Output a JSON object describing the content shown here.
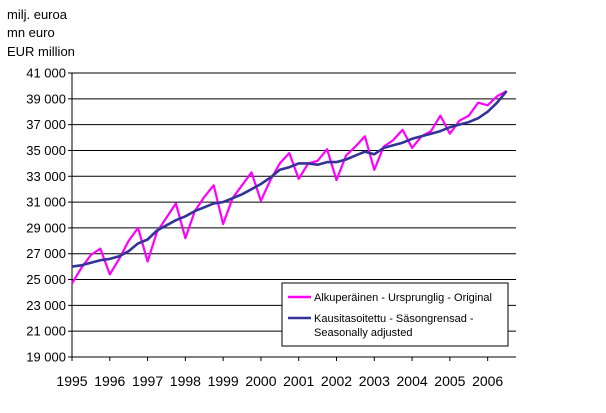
{
  "chart_data": {
    "type": "line",
    "unit_labels": [
      "milj. euroa",
      "mn euro",
      "EUR million"
    ],
    "ylim": [
      19000,
      41000
    ],
    "y_ticks": [
      19000,
      21000,
      23000,
      25000,
      27000,
      29000,
      31000,
      33000,
      35000,
      37000,
      39000,
      41000
    ],
    "y_tick_labels": [
      "19 000",
      "21 000",
      "23 000",
      "25 000",
      "27 000",
      "29 000",
      "31 000",
      "33 000",
      "35 000",
      "37 000",
      "39 000",
      "41 000"
    ],
    "xlim": [
      1995,
      2006.75
    ],
    "x_tick_labels": [
      "1995",
      "1996",
      "1997",
      "1998",
      "1999",
      "2000",
      "2001",
      "2002",
      "2003",
      "2004",
      "2005",
      "2006"
    ],
    "grid": true,
    "legend_position": "bottom-right",
    "series": [
      {
        "name": "Alkuperäinen - Ursprunglig - Original",
        "color": "#ff00ff",
        "x": [
          1995.0,
          1995.25,
          1995.5,
          1995.75,
          1996.0,
          1996.25,
          1996.5,
          1996.75,
          1997.0,
          1997.25,
          1997.5,
          1997.75,
          1998.0,
          1998.25,
          1998.5,
          1998.75,
          1999.0,
          1999.25,
          1999.5,
          1999.75,
          2000.0,
          2000.25,
          2000.5,
          2000.75,
          2001.0,
          2001.25,
          2001.5,
          2001.75,
          2002.0,
          2002.25,
          2002.5,
          2002.75,
          2003.0,
          2003.25,
          2003.5,
          2003.75,
          2004.0,
          2004.25,
          2004.5,
          2004.75,
          2005.0,
          2005.25,
          2005.5,
          2005.75,
          2006.0,
          2006.25,
          2006.5
        ],
        "values": [
          24700,
          25900,
          26900,
          27400,
          25400,
          26600,
          28000,
          29000,
          26400,
          28700,
          29800,
          30900,
          28200,
          30300,
          31400,
          32300,
          29300,
          31300,
          32300,
          33300,
          31100,
          32700,
          34000,
          34800,
          32800,
          34000,
          34200,
          35100,
          32700,
          34600,
          35300,
          36100,
          33500,
          35300,
          35800,
          36600,
          35200,
          36100,
          36500,
          37700,
          36300,
          37300,
          37700,
          38700,
          38500,
          39200,
          39600
        ]
      },
      {
        "name": "Kausitasoitettu - Säsongrensad - Seasonally adjusted",
        "color": "#333399",
        "x": [
          1995.0,
          1995.25,
          1995.5,
          1995.75,
          1996.0,
          1996.25,
          1996.5,
          1996.75,
          1997.0,
          1997.25,
          1997.5,
          1997.75,
          1998.0,
          1998.25,
          1998.5,
          1998.75,
          1999.0,
          1999.25,
          1999.5,
          1999.75,
          2000.0,
          2000.25,
          2000.5,
          2000.75,
          2001.0,
          2001.25,
          2001.5,
          2001.75,
          2002.0,
          2002.25,
          2002.5,
          2002.75,
          2003.0,
          2003.25,
          2003.5,
          2003.75,
          2004.0,
          2004.25,
          2004.5,
          2004.75,
          2005.0,
          2005.25,
          2005.5,
          2005.75,
          2006.0,
          2006.25,
          2006.5
        ],
        "values": [
          26000,
          26100,
          26300,
          26500,
          26600,
          26800,
          27200,
          27800,
          28100,
          28800,
          29200,
          29600,
          29900,
          30300,
          30600,
          30900,
          31000,
          31300,
          31600,
          32000,
          32400,
          32900,
          33500,
          33700,
          34000,
          34000,
          33900,
          34100,
          34100,
          34300,
          34600,
          34900,
          34700,
          35200,
          35400,
          35600,
          35900,
          36100,
          36300,
          36500,
          36800,
          37000,
          37200,
          37500,
          38000,
          38700,
          39600
        ]
      }
    ]
  }
}
